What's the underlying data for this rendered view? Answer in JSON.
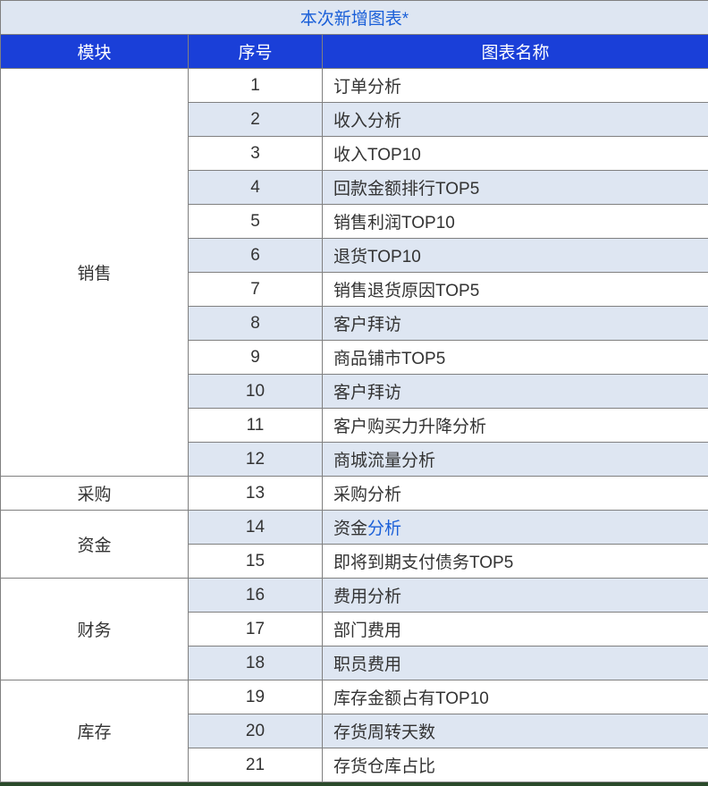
{
  "title": "本次新增图表*",
  "headers": {
    "module": "模块",
    "index": "序号",
    "name": "图表名称"
  },
  "colors": {
    "title_bg": "#dee6f2",
    "title_text": "#1a5fd8",
    "header_bg": "#1a3fd8",
    "header_text": "#ffffff",
    "row_light": "#ffffff",
    "row_dark": "#dee6f2",
    "border": "#808080",
    "text": "#333333"
  },
  "modules": [
    {
      "name": "销售",
      "rows": [
        {
          "index": "1",
          "name": "订单分析",
          "shade": "light"
        },
        {
          "index": "2",
          "name": "收入分析",
          "shade": "dark"
        },
        {
          "index": "3",
          "name": "收入TOP10",
          "shade": "light"
        },
        {
          "index": "4",
          "name": "回款金额排行TOP5",
          "shade": "dark"
        },
        {
          "index": "5",
          "name": "销售利润TOP10",
          "shade": "light"
        },
        {
          "index": "6",
          "name": "退货TOP10",
          "shade": "dark"
        },
        {
          "index": "7",
          "name": "销售退货原因TOP5",
          "shade": "light"
        },
        {
          "index": "8",
          "name": "客户拜访",
          "shade": "dark"
        },
        {
          "index": "9",
          "name": "商品铺市TOP5",
          "shade": "light"
        },
        {
          "index": "10",
          "name": "客户拜访",
          "shade": "dark"
        },
        {
          "index": "11",
          "name": "客户购买力升降分析",
          "shade": "light"
        },
        {
          "index": "12",
          "name": "商城流量分析",
          "shade": "dark"
        }
      ]
    },
    {
      "name": "采购",
      "rows": [
        {
          "index": "13",
          "name": "采购分析",
          "shade": "light"
        }
      ]
    },
    {
      "name": "资金",
      "rows": [
        {
          "index": "14",
          "name": "资金分析",
          "shade": "dark",
          "mixed": {
            "prefix": "资金",
            "suffix": "分析"
          }
        },
        {
          "index": "15",
          "name": "即将到期支付债务TOP5",
          "shade": "light"
        }
      ]
    },
    {
      "name": "财务",
      "rows": [
        {
          "index": "16",
          "name": "费用分析",
          "shade": "dark"
        },
        {
          "index": "17",
          "name": "部门费用",
          "shade": "light"
        },
        {
          "index": "18",
          "name": "职员费用",
          "shade": "dark"
        }
      ]
    },
    {
      "name": "库存",
      "rows": [
        {
          "index": "19",
          "name": "库存金额占有TOP10",
          "shade": "light"
        },
        {
          "index": "20",
          "name": "存货周转天数",
          "shade": "dark"
        },
        {
          "index": "21",
          "name": "存货仓库占比",
          "shade": "light"
        }
      ]
    }
  ]
}
